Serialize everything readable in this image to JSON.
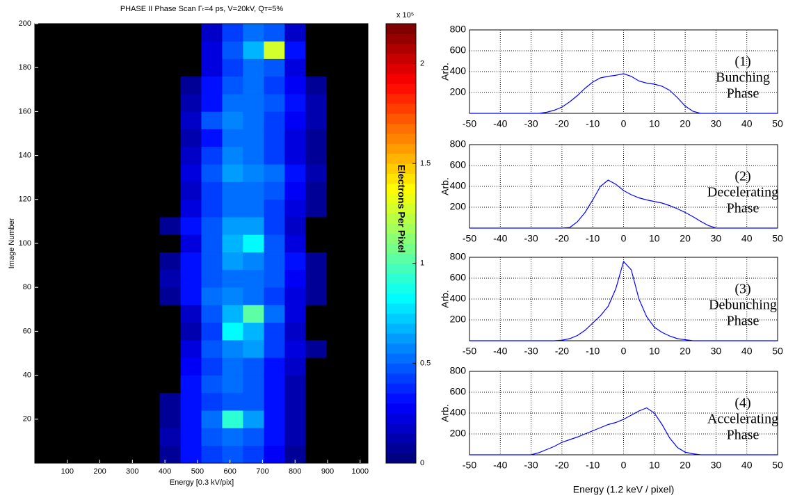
{
  "chart_data": [
    {
      "type": "heatmap",
      "title": "PHASE II Phase Scan Γₜ=4 ps, V=20kV, Qᴛ=5%",
      "xlabel": "Energy [0.3 kV/pix]",
      "ylabel": "Image Number",
      "xlim": [
        0,
        1024
      ],
      "ylim": [
        0,
        200
      ],
      "xticks": [
        100,
        200,
        300,
        400,
        500,
        600,
        700,
        800,
        900,
        1000
      ],
      "yticks": [
        20,
        40,
        60,
        80,
        100,
        120,
        140,
        160,
        180,
        200
      ],
      "x_bins": [
        0,
        64,
        128,
        192,
        256,
        320,
        384,
        448,
        512,
        576,
        640,
        704,
        768,
        832,
        896,
        960,
        1024
      ],
      "y_bins": [
        0,
        8,
        16,
        24,
        32,
        40,
        48,
        56,
        64,
        72,
        80,
        88,
        96,
        104,
        112,
        120,
        128,
        136,
        144,
        152,
        160,
        168,
        176,
        184,
        192,
        200
      ],
      "colormap": "jet",
      "colorbar_lim": [
        0,
        2.2
      ],
      "colorbar_ticks": [
        0,
        0.5,
        1,
        1.5,
        2
      ],
      "colorbar_label": "Electrons Per Pixel",
      "colorbar_multiplier": "x 10⁵",
      "values": [
        [
          0,
          0,
          0,
          0,
          0,
          0,
          0.05,
          0.3,
          0.4,
          0.45,
          0.4,
          0.25,
          0.05,
          0,
          0,
          0
        ],
        [
          0,
          0,
          0,
          0,
          0,
          0,
          0.1,
          0.35,
          0.45,
          0.5,
          0.45,
          0.3,
          0.1,
          0,
          0,
          0
        ],
        [
          0,
          0,
          0,
          0,
          0,
          0,
          0.05,
          0.35,
          0.5,
          0.9,
          0.6,
          0.35,
          0.1,
          0,
          0,
          0
        ],
        [
          0,
          0,
          0,
          0,
          0,
          0,
          0.05,
          0.3,
          0.4,
          0.45,
          0.45,
          0.3,
          0.1,
          0,
          0,
          0
        ],
        [
          0,
          0,
          0,
          0,
          0,
          0,
          0,
          0.3,
          0.45,
          0.5,
          0.45,
          0.3,
          0.1,
          0,
          0,
          0
        ],
        [
          0,
          0,
          0,
          0,
          0,
          0,
          0,
          0.25,
          0.4,
          0.5,
          0.45,
          0.35,
          0.15,
          0,
          0,
          0
        ],
        [
          0,
          0,
          0,
          0,
          0,
          0,
          0,
          0.2,
          0.45,
          0.55,
          0.6,
          0.4,
          0.2,
          0.05,
          0,
          0
        ],
        [
          0,
          0,
          0,
          0,
          0,
          0,
          0,
          0.1,
          0.4,
          0.8,
          0.7,
          0.4,
          0.15,
          0,
          0,
          0
        ],
        [
          0,
          0,
          0,
          0,
          0,
          0,
          0,
          0.15,
          0.45,
          0.7,
          1.0,
          0.5,
          0.2,
          0,
          0,
          0
        ],
        [
          0,
          0,
          0,
          0,
          0,
          0,
          0.05,
          0.35,
          0.5,
          0.55,
          0.5,
          0.4,
          0.2,
          0.05,
          0,
          0
        ],
        [
          0,
          0,
          0,
          0,
          0,
          0,
          0.1,
          0.35,
          0.45,
          0.5,
          0.5,
          0.45,
          0.25,
          0.05,
          0,
          0
        ],
        [
          0,
          0,
          0,
          0,
          0,
          0,
          0.05,
          0.3,
          0.45,
          0.6,
          0.55,
          0.45,
          0.3,
          0.05,
          0,
          0
        ],
        [
          0,
          0,
          0,
          0,
          0,
          0,
          0,
          0.2,
          0.45,
          0.7,
          0.8,
          0.45,
          0.2,
          0,
          0,
          0
        ],
        [
          0,
          0,
          0,
          0,
          0,
          0,
          0.05,
          0.3,
          0.45,
          0.6,
          0.6,
          0.4,
          0.15,
          0,
          0,
          0
        ],
        [
          0,
          0,
          0,
          0,
          0,
          0,
          0,
          0.2,
          0.4,
          0.5,
          0.5,
          0.4,
          0.2,
          0.05,
          0,
          0
        ],
        [
          0,
          0,
          0,
          0,
          0,
          0,
          0,
          0.15,
          0.4,
          0.5,
          0.5,
          0.45,
          0.25,
          0.05,
          0,
          0
        ],
        [
          0,
          0,
          0,
          0,
          0,
          0,
          0,
          0.2,
          0.45,
          0.6,
          0.55,
          0.5,
          0.3,
          0.1,
          0,
          0
        ],
        [
          0,
          0,
          0,
          0,
          0,
          0,
          0,
          0.15,
          0.4,
          0.55,
          0.5,
          0.4,
          0.2,
          0.05,
          0,
          0
        ],
        [
          0,
          0,
          0,
          0,
          0,
          0,
          0,
          0.1,
          0.35,
          0.5,
          0.5,
          0.4,
          0.2,
          0.05,
          0,
          0
        ],
        [
          0,
          0,
          0,
          0,
          0,
          0,
          0,
          0.15,
          0.45,
          0.55,
          0.5,
          0.4,
          0.25,
          0.1,
          0,
          0
        ],
        [
          0,
          0,
          0,
          0,
          0,
          0,
          0,
          0.1,
          0.35,
          0.5,
          0.5,
          0.45,
          0.3,
          0.1,
          0,
          0
        ],
        [
          0,
          0,
          0,
          0,
          0,
          0,
          0,
          0.05,
          0.3,
          0.45,
          0.5,
          0.4,
          0.25,
          0.05,
          0,
          0
        ],
        [
          0,
          0,
          0,
          0,
          0,
          0,
          0,
          0,
          0.2,
          0.4,
          0.5,
          0.45,
          0.2,
          0,
          0,
          0
        ],
        [
          0,
          0,
          0,
          0,
          0,
          0,
          0,
          0,
          0.2,
          0.45,
          0.7,
          1.3,
          0.3,
          0,
          0,
          0
        ],
        [
          0,
          0,
          0,
          0,
          0,
          0,
          0,
          0,
          0.15,
          0.4,
          0.5,
          0.45,
          0.15,
          0,
          0,
          0
        ]
      ]
    },
    {
      "type": "line",
      "ylabel": "Arb.",
      "annotations": [
        "(1)",
        "Bunching",
        "Phase"
      ],
      "xlim": [
        -50,
        50
      ],
      "ylim": [
        0,
        800
      ],
      "grid": true,
      "color": "#0000ff",
      "xticks": [
        -50,
        -40,
        -30,
        -20,
        -10,
        0,
        10,
        20,
        30,
        40,
        50
      ],
      "yticks": [
        200,
        400,
        600,
        800
      ],
      "x": [
        -50,
        -47.5,
        -45,
        -42.5,
        -40,
        -37.5,
        -35,
        -32.5,
        -30,
        -27.5,
        -25,
        -22.5,
        -20,
        -17.5,
        -15,
        -12.5,
        -10,
        -7.5,
        -5,
        -2.5,
        0,
        2.5,
        5,
        7.5,
        10,
        12.5,
        15,
        17.5,
        20,
        22.5,
        25,
        27.5,
        30,
        32.5,
        35,
        37.5,
        40,
        42.5,
        45,
        47.5,
        50
      ],
      "values": [
        0,
        0,
        0,
        0,
        0,
        0,
        0,
        0,
        0,
        0,
        10,
        30,
        60,
        110,
        170,
        240,
        300,
        340,
        355,
        365,
        380,
        355,
        310,
        290,
        280,
        260,
        220,
        150,
        70,
        20,
        0,
        0,
        0,
        0,
        0,
        0,
        0,
        0,
        0,
        0,
        0
      ]
    },
    {
      "type": "line",
      "ylabel": "Arb.",
      "annotations": [
        "(2)",
        "Decelerating",
        "Phase"
      ],
      "xlim": [
        -50,
        50
      ],
      "ylim": [
        0,
        800
      ],
      "grid": true,
      "color": "#0000ff",
      "xticks": [
        -50,
        -40,
        -30,
        -20,
        -10,
        0,
        10,
        20,
        30,
        40,
        50
      ],
      "yticks": [
        200,
        400,
        600,
        800
      ],
      "x": [
        -50,
        -47.5,
        -45,
        -42.5,
        -40,
        -37.5,
        -35,
        -32.5,
        -30,
        -27.5,
        -25,
        -22.5,
        -20,
        -17.5,
        -15,
        -12.5,
        -10,
        -7.5,
        -5,
        -2.5,
        0,
        2.5,
        5,
        7.5,
        10,
        12.5,
        15,
        17.5,
        20,
        22.5,
        25,
        27.5,
        30,
        32.5,
        35,
        37.5,
        40,
        42.5,
        45,
        47.5,
        50
      ],
      "values": [
        0,
        0,
        0,
        0,
        0,
        0,
        0,
        0,
        0,
        0,
        0,
        0,
        0,
        5,
        60,
        150,
        270,
        400,
        460,
        420,
        360,
        320,
        290,
        270,
        255,
        240,
        215,
        185,
        150,
        110,
        65,
        25,
        0,
        0,
        0,
        0,
        0,
        0,
        0,
        0,
        0
      ]
    },
    {
      "type": "line",
      "ylabel": "Arb.",
      "annotations": [
        "(3)",
        "Debunching",
        "Phase"
      ],
      "xlim": [
        -50,
        50
      ],
      "ylim": [
        0,
        800
      ],
      "grid": true,
      "color": "#0000ff",
      "xticks": [
        -50,
        -40,
        -30,
        -20,
        -10,
        0,
        10,
        20,
        30,
        40,
        50
      ],
      "yticks": [
        200,
        400,
        600,
        800
      ],
      "x": [
        -50,
        -47.5,
        -45,
        -42.5,
        -40,
        -37.5,
        -35,
        -32.5,
        -30,
        -27.5,
        -25,
        -22.5,
        -20,
        -17.5,
        -15,
        -12.5,
        -10,
        -7.5,
        -5,
        -2.5,
        0,
        2.5,
        5,
        7.5,
        10,
        12.5,
        15,
        17.5,
        20,
        22.5,
        25,
        27.5,
        30,
        32.5,
        35,
        37.5,
        40,
        42.5,
        45,
        47.5,
        50
      ],
      "values": [
        0,
        0,
        0,
        0,
        0,
        0,
        0,
        0,
        0,
        0,
        0,
        0,
        5,
        20,
        50,
        100,
        170,
        240,
        330,
        500,
        760,
        680,
        400,
        230,
        130,
        80,
        45,
        20,
        10,
        0,
        0,
        0,
        0,
        0,
        0,
        0,
        0,
        0,
        0,
        0,
        0
      ]
    },
    {
      "type": "line",
      "ylabel": "Arb.",
      "annotations": [
        "(4)",
        "Accelerating",
        "Phase"
      ],
      "xlabel": "Energy (1.2 keV / pixel)",
      "xlim": [
        -50,
        50
      ],
      "ylim": [
        0,
        800
      ],
      "grid": true,
      "color": "#0000ff",
      "xticks": [
        -50,
        -40,
        -30,
        -20,
        -10,
        0,
        10,
        20,
        30,
        40,
        50
      ],
      "yticks": [
        200,
        400,
        600,
        800
      ],
      "x": [
        -50,
        -47.5,
        -45,
        -42.5,
        -40,
        -37.5,
        -35,
        -32.5,
        -30,
        -27.5,
        -25,
        -22.5,
        -20,
        -17.5,
        -15,
        -12.5,
        -10,
        -7.5,
        -5,
        -2.5,
        0,
        2.5,
        5,
        7.5,
        10,
        12.5,
        15,
        17.5,
        20,
        22.5,
        25,
        27.5,
        30,
        32.5,
        35,
        37.5,
        40,
        42.5,
        45,
        47.5,
        50
      ],
      "values": [
        0,
        0,
        0,
        0,
        0,
        0,
        0,
        0,
        0,
        20,
        50,
        80,
        120,
        145,
        170,
        200,
        230,
        260,
        290,
        310,
        340,
        380,
        420,
        450,
        400,
        290,
        160,
        70,
        25,
        10,
        0,
        0,
        0,
        0,
        0,
        0,
        0,
        0,
        0,
        0,
        0
      ]
    }
  ]
}
